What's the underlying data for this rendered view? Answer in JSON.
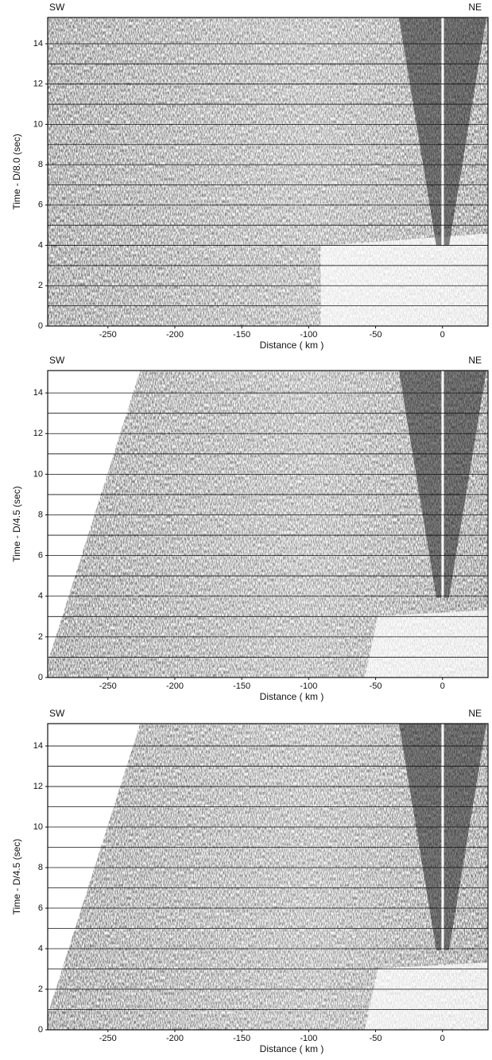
{
  "chart_data": [
    {
      "type": "image",
      "ylabel": "Time - D/8.0 (sec)",
      "xlabel": "Distance ( km )",
      "left_label": "SW",
      "right_label": "NE",
      "xlim": [
        -295,
        34
      ],
      "ylim": [
        0,
        15.3
      ],
      "xticks": [
        -250,
        -200,
        -150,
        -100,
        -50,
        0
      ],
      "yticks": [
        0,
        2,
        4,
        6,
        8,
        10,
        12,
        14
      ],
      "yminor": [
        1,
        3,
        5,
        7,
        9,
        11,
        13
      ],
      "grid": true
    },
    {
      "type": "image",
      "ylabel": "Time - D/4.5 (sec)",
      "xlabel": "Distance ( km )",
      "left_label": "SW",
      "right_label": "NE",
      "xlim": [
        -295,
        34
      ],
      "ylim": [
        0,
        15.1
      ],
      "xticks": [
        -250,
        -200,
        -150,
        -100,
        -50,
        0
      ],
      "yticks": [
        0,
        2,
        4,
        6,
        8,
        10,
        12,
        14
      ],
      "yminor": [
        1,
        3,
        5,
        7,
        9,
        11,
        13
      ],
      "grid": true
    },
    {
      "type": "image",
      "ylabel": "Time - D/4.5 (sec)",
      "xlabel": "Distance ( km )",
      "left_label": "SW",
      "right_label": "NE",
      "xlim": [
        -295,
        34
      ],
      "ylim": [
        0,
        15.1
      ],
      "xticks": [
        -250,
        -200,
        -150,
        -100,
        -50,
        0
      ],
      "yticks": [
        0,
        2,
        4,
        6,
        8,
        10,
        12,
        14
      ],
      "yminor": [
        1,
        3,
        5,
        7,
        9,
        11,
        13
      ],
      "grid": true
    }
  ]
}
